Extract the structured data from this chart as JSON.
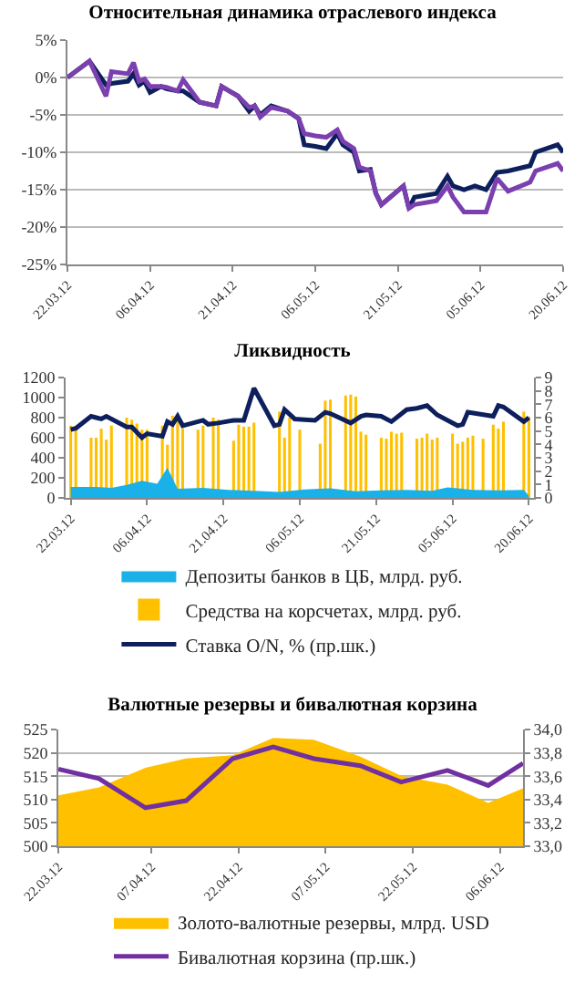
{
  "chart_data": [
    {
      "type": "line",
      "title": "Относительная динамика отраслевого индекса",
      "xlim": [
        "2012-03-22",
        "2012-06-20"
      ],
      "xticks": [
        {
          "value": "2012-03-22",
          "label": "22.03.12"
        },
        {
          "value": "2012-04-06",
          "label": "06.04.12"
        },
        {
          "value": "2012-04-21",
          "label": "21.04.12"
        },
        {
          "value": "2012-05-06",
          "label": "06.05.12"
        },
        {
          "value": "2012-05-21",
          "label": "21.05.12"
        },
        {
          "value": "2012-06-05",
          "label": "05.06.12"
        },
        {
          "value": "2012-06-20",
          "label": "20.06.12"
        }
      ],
      "ylim": [
        -25,
        5
      ],
      "yticks": [
        {
          "value": -25,
          "label": "-25%"
        },
        {
          "value": -20,
          "label": "-20%"
        },
        {
          "value": -15,
          "label": "-15%"
        },
        {
          "value": -10,
          "label": "-10%"
        },
        {
          "value": -5,
          "label": "-5%"
        },
        {
          "value": 0,
          "label": "0%"
        },
        {
          "value": 5,
          "label": "5%"
        }
      ],
      "grid": "y",
      "legend": false,
      "x": [
        "2012-03-22",
        "2012-03-26",
        "2012-03-29",
        "2012-03-30",
        "2012-04-02",
        "2012-04-03",
        "2012-04-04",
        "2012-04-05",
        "2012-04-06",
        "2012-04-08",
        "2012-04-09",
        "2012-04-11",
        "2012-04-12",
        "2012-04-15",
        "2012-04-18",
        "2012-04-19",
        "2012-04-22",
        "2012-04-24",
        "2012-04-25",
        "2012-04-26",
        "2012-04-28",
        "2012-05-01",
        "2012-05-03",
        "2012-05-04",
        "2012-05-06",
        "2012-05-08",
        "2012-05-10",
        "2012-05-11",
        "2012-05-13",
        "2012-05-14",
        "2012-05-16",
        "2012-05-17",
        "2012-05-18",
        "2012-05-22",
        "2012-05-23",
        "2012-05-24",
        "2012-05-28",
        "2012-05-30",
        "2012-05-31",
        "2012-06-02",
        "2012-06-04",
        "2012-06-06",
        "2012-06-08",
        "2012-06-10",
        "2012-06-14",
        "2012-06-15",
        "2012-06-19",
        "2012-06-20"
      ],
      "series": [
        {
          "color": "#0d1f5c",
          "values": [
            0,
            2.2,
            -1,
            -0.8,
            -0.5,
            0.5,
            -1,
            -0.5,
            -2,
            -1.2,
            -1.5,
            -1.8,
            -1.8,
            -3.3,
            -3.8,
            -1.2,
            -2.5,
            -4.5,
            -3.8,
            -5,
            -3.8,
            -4.5,
            -5.5,
            -9,
            -9.2,
            -9.5,
            -7.5,
            -9,
            -10,
            -12.5,
            -12.3,
            -15.5,
            -17,
            -14.5,
            -17.5,
            -16,
            -15.5,
            -13.2,
            -14.5,
            -15,
            -14.5,
            -15,
            -12.7,
            -12.5,
            -11.8,
            -10,
            -9,
            -10
          ]
        },
        {
          "color": "#7b3fb0",
          "values": [
            0,
            2.2,
            -2.5,
            0.8,
            0.5,
            2,
            -0.5,
            -0.2,
            -1.2,
            -1.2,
            -1.3,
            -1.8,
            -0.3,
            -3.3,
            -3.8,
            -1.2,
            -2.5,
            -4,
            -3.8,
            -5.3,
            -4,
            -4.5,
            -5.5,
            -7.5,
            -7.8,
            -8,
            -7,
            -8.5,
            -9.5,
            -12,
            -12.5,
            -15.5,
            -17,
            -14.5,
            -17.5,
            -17,
            -16.5,
            -14.5,
            -16,
            -18,
            -18,
            -18,
            -13.5,
            -15.2,
            -14,
            -12.5,
            -11.5,
            -12.5
          ]
        }
      ]
    },
    {
      "type": "bar",
      "title": "Ликвидность",
      "xlim": [
        "2012-03-21",
        "2012-06-21"
      ],
      "xticks": [
        {
          "value": "2012-03-22",
          "label": "22.03.12"
        },
        {
          "value": "2012-04-06",
          "label": "06.04.12"
        },
        {
          "value": "2012-04-21",
          "label": "21.04.12"
        },
        {
          "value": "2012-05-06",
          "label": "06.05.12"
        },
        {
          "value": "2012-05-21",
          "label": "21.05.12"
        },
        {
          "value": "2012-06-05",
          "label": "05.06.12"
        },
        {
          "value": "2012-06-20",
          "label": "20.06.12"
        }
      ],
      "ylim": [
        0,
        1200
      ],
      "yticks": [
        0,
        200,
        400,
        600,
        800,
        1000,
        1200
      ],
      "y2lim": [
        0,
        9
      ],
      "y2ticks": [
        0,
        1,
        2,
        3,
        4,
        5,
        6,
        7,
        8,
        9
      ],
      "grid": false,
      "legend": "bottom",
      "series": [
        {
          "type": "area",
          "name": "Депозиты банков в ЦБ, млрд. руб.",
          "color": "#1ab0e8",
          "x": [
            "2012-03-22",
            "2012-03-27",
            "2012-03-30",
            "2012-04-02",
            "2012-04-05",
            "2012-04-08",
            "2012-04-10",
            "2012-04-12",
            "2012-04-17",
            "2012-04-22",
            "2012-04-27",
            "2012-05-02",
            "2012-05-07",
            "2012-05-12",
            "2012-05-17",
            "2012-05-22",
            "2012-05-27",
            "2012-06-01",
            "2012-06-04",
            "2012-06-09",
            "2012-06-14",
            "2012-06-19",
            "2012-06-20"
          ],
          "values": [
            110,
            110,
            100,
            130,
            170,
            140,
            300,
            90,
            100,
            80,
            70,
            60,
            85,
            95,
            65,
            75,
            80,
            70,
            105,
            80,
            75,
            80,
            20
          ]
        },
        {
          "type": "bar",
          "name": "Средства на корсчетах, млрд. руб.",
          "color": "#ffc000",
          "x": [
            "2012-03-22",
            "2012-03-23",
            "2012-03-26",
            "2012-03-27",
            "2012-03-28",
            "2012-03-29",
            "2012-03-30",
            "2012-04-02",
            "2012-04-03",
            "2012-04-04",
            "2012-04-05",
            "2012-04-06",
            "2012-04-09",
            "2012-04-10",
            "2012-04-11",
            "2012-04-12",
            "2012-04-13",
            "2012-04-16",
            "2012-04-17",
            "2012-04-19",
            "2012-04-20",
            "2012-04-23",
            "2012-04-24",
            "2012-04-25",
            "2012-04-26",
            "2012-04-27",
            "2012-05-02",
            "2012-05-03",
            "2012-05-04",
            "2012-05-06",
            "2012-05-10",
            "2012-05-11",
            "2012-05-12",
            "2012-05-15",
            "2012-05-16",
            "2012-05-17",
            "2012-05-18",
            "2012-05-19",
            "2012-05-22",
            "2012-05-23",
            "2012-05-24",
            "2012-05-25",
            "2012-05-26",
            "2012-05-29",
            "2012-05-30",
            "2012-05-31",
            "2012-06-01",
            "2012-06-02",
            "2012-06-05",
            "2012-06-06",
            "2012-06-07",
            "2012-06-08",
            "2012-06-09",
            "2012-06-11",
            "2012-06-13",
            "2012-06-14",
            "2012-06-15",
            "2012-06-19",
            "2012-06-20"
          ],
          "values": [
            720,
            680,
            600,
            600,
            690,
            580,
            720,
            800,
            780,
            740,
            680,
            680,
            720,
            530,
            820,
            820,
            690,
            680,
            720,
            800,
            780,
            570,
            730,
            710,
            710,
            750,
            860,
            600,
            800,
            680,
            540,
            970,
            980,
            1020,
            1030,
            1010,
            660,
            630,
            600,
            590,
            660,
            640,
            650,
            590,
            600,
            640,
            580,
            600,
            640,
            540,
            560,
            600,
            620,
            590,
            730,
            690,
            760,
            860,
            810
          ]
        },
        {
          "type": "line",
          "axis": "y2",
          "name": "Ставка O/N, % (пр.шк.)",
          "color": "#0d1f5c",
          "x": [
            "2012-03-22",
            "2012-03-23",
            "2012-03-26",
            "2012-03-27",
            "2012-03-28",
            "2012-03-29",
            "2012-04-02",
            "2012-04-03",
            "2012-04-05",
            "2012-04-06",
            "2012-04-09",
            "2012-04-10",
            "2012-04-11",
            "2012-04-12",
            "2012-04-13",
            "2012-04-17",
            "2012-04-18",
            "2012-04-20",
            "2012-04-23",
            "2012-04-25",
            "2012-04-27",
            "2012-05-01",
            "2012-05-02",
            "2012-05-03",
            "2012-05-05",
            "2012-05-09",
            "2012-05-11",
            "2012-05-12",
            "2012-05-16",
            "2012-05-18",
            "2012-05-19",
            "2012-05-22",
            "2012-05-24",
            "2012-05-27",
            "2012-05-29",
            "2012-05-31",
            "2012-06-02",
            "2012-06-06",
            "2012-06-07",
            "2012-06-08",
            "2012-06-13",
            "2012-06-14",
            "2012-06-15",
            "2012-06-19",
            "2012-06-20"
          ],
          "values": [
            5.1,
            5.2,
            6.1,
            6.0,
            5.9,
            6.1,
            5.3,
            5.3,
            4.5,
            4.8,
            4.6,
            5.7,
            5.5,
            6.1,
            5.4,
            5.8,
            5.5,
            5.6,
            5.8,
            5.8,
            8.2,
            5.4,
            5.5,
            6.6,
            5.9,
            5.8,
            6.4,
            6.3,
            5.6,
            6.1,
            6.2,
            6.1,
            5.7,
            6.6,
            6.7,
            6.9,
            6.2,
            5.4,
            5.5,
            6.4,
            6.1,
            6.9,
            6.8,
            5.7,
            6.0
          ]
        }
      ]
    },
    {
      "type": "area",
      "title": "Валютные резервы и бивалютная корзина",
      "xlim": [
        "2012-03-22",
        "2012-06-10"
      ],
      "xticks": [
        {
          "value": "2012-03-22",
          "label": "22.03.12"
        },
        {
          "value": "2012-04-07",
          "label": "07.04.12"
        },
        {
          "value": "2012-04-22",
          "label": "22.04.12"
        },
        {
          "value": "2012-05-07",
          "label": "07.05.12"
        },
        {
          "value": "2012-05-22",
          "label": "22.05.12"
        },
        {
          "value": "2012-06-06",
          "label": "06.06.12"
        }
      ],
      "ylim": [
        500,
        525
      ],
      "yticks": [
        500,
        505,
        510,
        515,
        520,
        525
      ],
      "y2lim": [
        33,
        34
      ],
      "y2ticks": [
        {
          "value": 33,
          "label": "33,0"
        },
        {
          "value": 33.2,
          "label": "33,2"
        },
        {
          "value": 33.4,
          "label": "33,4"
        },
        {
          "value": 33.6,
          "label": "33,6"
        },
        {
          "value": 33.8,
          "label": "33,8"
        },
        {
          "value": 34,
          "label": "34,0"
        }
      ],
      "grid": "y",
      "legend": "bottom",
      "x": [
        "2012-03-22",
        "2012-03-29",
        "2012-04-06",
        "2012-04-13",
        "2012-04-21",
        "2012-04-28",
        "2012-05-05",
        "2012-05-13",
        "2012-05-20",
        "2012-05-28",
        "2012-06-04",
        "2012-06-10"
      ],
      "series": [
        {
          "type": "area",
          "name": "Золото-валютные резервы, млрд. USD",
          "color": "#ffc000",
          "values": [
            510.9,
            512.6,
            516.8,
            518.8,
            519.5,
            523.2,
            522.8,
            519.2,
            515.1,
            513.2,
            509.3,
            512.4
          ]
        },
        {
          "type": "line",
          "axis": "y2",
          "name": "Бивалютная корзина (пр.шк.)",
          "color": "#7030a0",
          "values": [
            33.66,
            33.58,
            33.33,
            33.39,
            33.75,
            33.85,
            33.75,
            33.69,
            33.55,
            33.65,
            33.52,
            33.71
          ]
        }
      ]
    }
  ]
}
